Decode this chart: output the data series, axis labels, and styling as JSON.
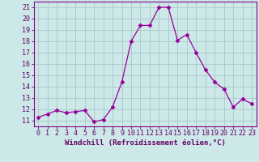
{
  "x": [
    0,
    1,
    2,
    3,
    4,
    5,
    6,
    7,
    8,
    9,
    10,
    11,
    12,
    13,
    14,
    15,
    16,
    17,
    18,
    19,
    20,
    21,
    22,
    23
  ],
  "y": [
    11.3,
    11.6,
    11.9,
    11.7,
    11.8,
    11.9,
    10.9,
    11.1,
    12.2,
    14.4,
    18.0,
    19.4,
    19.4,
    21.0,
    21.0,
    18.1,
    18.6,
    17.0,
    15.5,
    14.4,
    13.8,
    12.2,
    12.9,
    12.5
  ],
  "line_color": "#990099",
  "marker": "D",
  "marker_size": 2.5,
  "bg_color": "#cce8e8",
  "grid_color": "#aac8c8",
  "xlabel": "Windchill (Refroidissement éolien,°C)",
  "ylabel_ticks": [
    11,
    12,
    13,
    14,
    15,
    16,
    17,
    18,
    19,
    20,
    21
  ],
  "xlim": [
    -0.5,
    23.5
  ],
  "ylim": [
    10.5,
    21.5
  ],
  "xlabel_fontsize": 6.5,
  "tick_fontsize": 6.0,
  "xlabel_color": "#660066",
  "tick_color": "#660066",
  "spine_color": "#880088"
}
